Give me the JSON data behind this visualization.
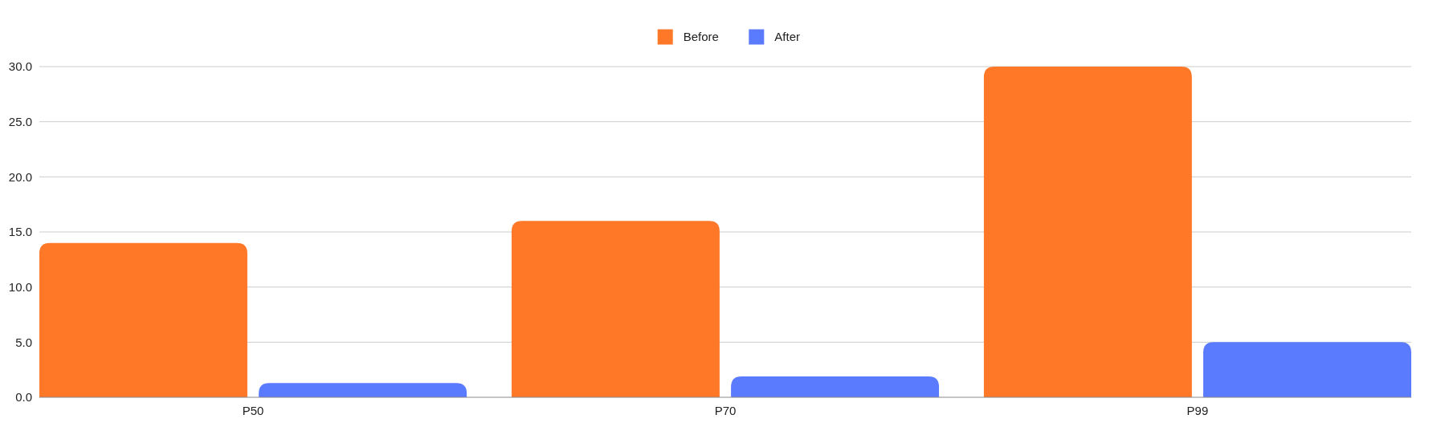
{
  "chart_data": {
    "type": "bar",
    "categories": [
      "P50",
      "P70",
      "P99"
    ],
    "series": [
      {
        "name": "Before",
        "color": "#fe7828",
        "values": [
          14,
          16,
          30
        ]
      },
      {
        "name": "After",
        "color": "#5a7bfd",
        "values": [
          1.3,
          1.9,
          5
        ]
      }
    ],
    "ylim": [
      0,
      30
    ],
    "yticks": [
      {
        "value": 0,
        "label": "0.0"
      },
      {
        "value": 5,
        "label": "5.0"
      },
      {
        "value": 10,
        "label": "10.0"
      },
      {
        "value": 15,
        "label": "15.0"
      },
      {
        "value": 20,
        "label": "20.0"
      },
      {
        "value": 25,
        "label": "25.0"
      },
      {
        "value": 30,
        "label": "30.0"
      }
    ],
    "grid": "y",
    "legend": "top"
  }
}
